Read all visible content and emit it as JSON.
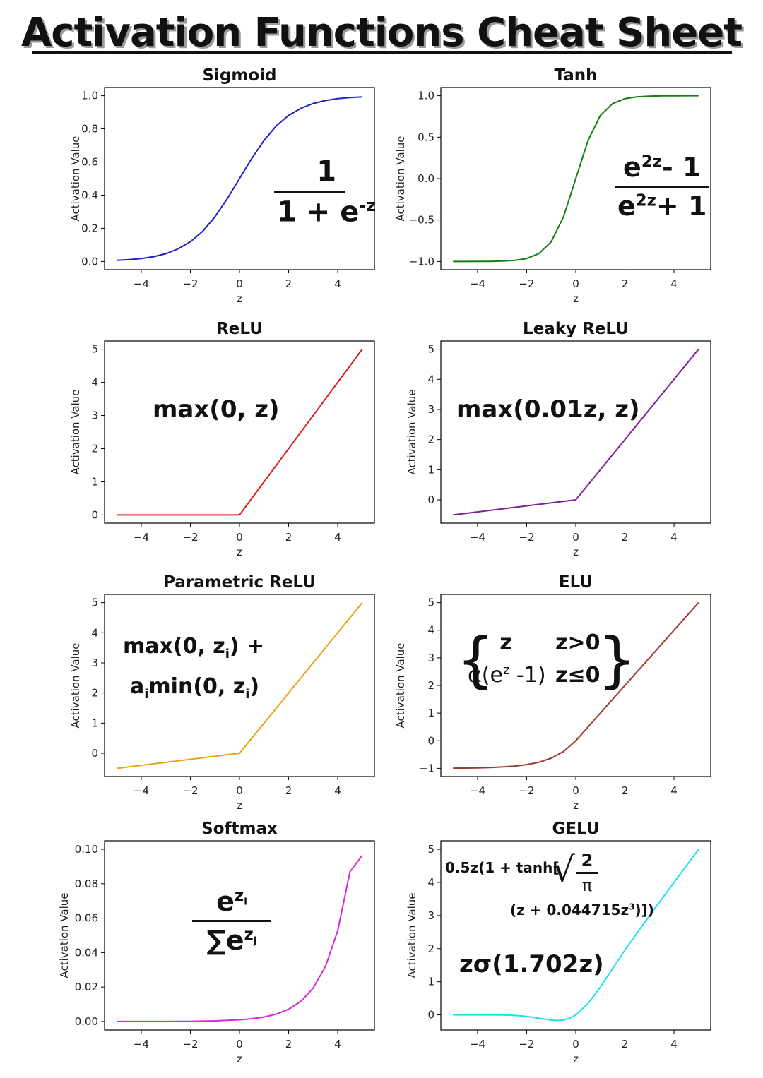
{
  "page_title": "Activation Functions Cheat Sheet",
  "chart_data": [
    {
      "type": "line",
      "title": "Sigmoid",
      "xlabel": "z",
      "ylabel": "Activation Value",
      "xlim": [
        -5,
        5
      ],
      "ylim": [
        0,
        1
      ],
      "xticks": [
        "−4",
        "−2",
        "0",
        "2",
        "4"
      ],
      "yticks": [
        "0.0",
        "0.2",
        "0.4",
        "0.6",
        "0.8",
        "1.0"
      ],
      "series": [
        {
          "color": "#1f1fcc",
          "x": [
            -5,
            -4.5,
            -4,
            -3.5,
            -3,
            -2.5,
            -2,
            -1.5,
            -1,
            -0.5,
            0,
            0.5,
            1,
            1.5,
            2,
            2.5,
            3,
            3.5,
            4,
            4.5,
            5
          ],
          "y": [
            0.007,
            0.011,
            0.018,
            0.029,
            0.047,
            0.076,
            0.119,
            0.182,
            0.269,
            0.378,
            0.5,
            0.622,
            0.731,
            0.818,
            0.881,
            0.924,
            0.953,
            0.971,
            0.982,
            0.989,
            0.993
          ]
        }
      ],
      "grid": false,
      "formula": {
        "numerator": "1",
        "denominator": "1 + e",
        "den_sup": "-z"
      }
    },
    {
      "type": "line",
      "title": "Tanh",
      "xlabel": "z",
      "ylabel": "Activation Value",
      "xlim": [
        -5,
        5
      ],
      "ylim": [
        -1,
        1
      ],
      "xticks": [
        "−4",
        "−2",
        "0",
        "2",
        "4"
      ],
      "yticks": [
        "−1.0",
        "−0.5",
        "0.0",
        "0.5",
        "1.0"
      ],
      "series": [
        {
          "color": "#128012",
          "x": [
            -5,
            -4.5,
            -4,
            -3.5,
            -3,
            -2.5,
            -2,
            -1.5,
            -1,
            -0.5,
            0,
            0.5,
            1,
            1.5,
            2,
            2.5,
            3,
            3.5,
            4,
            4.5,
            5
          ],
          "y": [
            -1,
            -1,
            -0.999,
            -0.998,
            -0.995,
            -0.987,
            -0.964,
            -0.905,
            -0.762,
            -0.462,
            0,
            0.462,
            0.762,
            0.905,
            0.964,
            0.987,
            0.995,
            0.998,
            0.999,
            1,
            1
          ]
        }
      ],
      "grid": false,
      "formula": {
        "num_base": "e",
        "num_sup": "2z",
        "num_tail": "- 1",
        "den_base": "e",
        "den_sup": "2z",
        "den_tail": "+ 1"
      }
    },
    {
      "type": "line",
      "title": "ReLU",
      "xlabel": "z",
      "ylabel": "Activation Value",
      "xlim": [
        -5,
        5
      ],
      "ylim": [
        0,
        5
      ],
      "xticks": [
        "−4",
        "−2",
        "0",
        "2",
        "4"
      ],
      "yticks": [
        "0",
        "1",
        "2",
        "3",
        "4",
        "5"
      ],
      "series": [
        {
          "color": "#d62020",
          "x": [
            -5,
            0,
            5
          ],
          "y": [
            0,
            0,
            5
          ]
        }
      ],
      "grid": false,
      "formula": {
        "text": "max(0, z)"
      }
    },
    {
      "type": "line",
      "title": "Leaky ReLU",
      "xlabel": "z",
      "ylabel": "Activation Value",
      "xlim": [
        -5,
        5
      ],
      "ylim": [
        -0.5,
        5
      ],
      "xticks": [
        "−4",
        "−2",
        "0",
        "2",
        "4"
      ],
      "yticks": [
        "0",
        "1",
        "2",
        "3",
        "4",
        "5"
      ],
      "series": [
        {
          "color": "#7b1f9a",
          "x": [
            -5,
            0,
            5
          ],
          "y": [
            -0.5,
            0,
            5
          ]
        }
      ],
      "grid": false,
      "formula": {
        "text": "max(0.01z, z)"
      }
    },
    {
      "type": "line",
      "title": "Parametric ReLU",
      "xlabel": "z",
      "ylabel": "Activation Value",
      "xlim": [
        -5,
        5
      ],
      "ylim": [
        -0.5,
        5
      ],
      "xticks": [
        "−4",
        "−2",
        "0",
        "2",
        "4"
      ],
      "yticks": [
        "0",
        "1",
        "2",
        "3",
        "4",
        "5"
      ],
      "series": [
        {
          "color": "#e8a318",
          "x": [
            -5,
            0,
            5
          ],
          "y": [
            -0.5,
            0,
            5
          ]
        }
      ],
      "grid": false,
      "formula": {
        "line1": "max(0, z",
        "line1_sub": "i",
        "line1_tail": ") +",
        "line2_pre": "a",
        "line2_sub1": "i",
        "line2_mid": "min(0, z",
        "line2_sub2": "i",
        "line2_tail": ")"
      }
    },
    {
      "type": "line",
      "title": "ELU",
      "xlabel": "z",
      "ylabel": "Activation Value",
      "xlim": [
        -5,
        5
      ],
      "ylim": [
        -1,
        5
      ],
      "xticks": [
        "−4",
        "−2",
        "0",
        "2",
        "4"
      ],
      "yticks": [
        "−1",
        "0",
        "1",
        "2",
        "3",
        "4",
        "5"
      ],
      "series": [
        {
          "color": "#9e3a2e",
          "x": [
            -5,
            -4.5,
            -4,
            -3.5,
            -3,
            -2.5,
            -2,
            -1.5,
            -1,
            -0.5,
            0,
            1,
            2,
            3,
            4,
            5
          ],
          "y": [
            -0.993,
            -0.989,
            -0.982,
            -0.97,
            -0.95,
            -0.918,
            -0.865,
            -0.777,
            -0.632,
            -0.393,
            0,
            1,
            2,
            3,
            4,
            5
          ]
        }
      ],
      "grid": false,
      "formula": {
        "case1_val": "z",
        "case1_cond": "z>0",
        "case2_pre": "α(e",
        "case2_sup": "z",
        "case2_tail": " -1)",
        "case2_cond": "z≤0"
      }
    },
    {
      "type": "line",
      "title": "Softmax",
      "xlabel": "z",
      "ylabel": "Activation Value",
      "xlim": [
        -5,
        5
      ],
      "ylim": [
        0,
        0.1
      ],
      "xticks": [
        "−4",
        "−2",
        "0",
        "2",
        "4"
      ],
      "yticks": [
        "0.00",
        "0.02",
        "0.04",
        "0.06",
        "0.08",
        "0.10"
      ],
      "series": [
        {
          "color": "#d42ad4",
          "x": [
            -5,
            -4,
            -3,
            -2,
            -1,
            0,
            0.5,
            1,
            1.5,
            2,
            2.5,
            3,
            3.5,
            4,
            4.5,
            5
          ],
          "y": [
            0,
            0,
            0,
            0.0001,
            0.0004,
            0.001,
            0.0016,
            0.0026,
            0.0043,
            0.0071,
            0.0117,
            0.0194,
            0.032,
            0.0527,
            0.087,
            0.0965
          ]
        }
      ],
      "grid": false,
      "formula": {
        "num_base": "e",
        "num_sup": "z",
        "num_sub": "i",
        "den_sum": "∑",
        "den_base": "e",
        "den_sup": "z",
        "den_sub": "j"
      }
    },
    {
      "type": "line",
      "title": "GELU",
      "xlabel": "z",
      "ylabel": "Activation Value",
      "xlim": [
        -5,
        5
      ],
      "ylim": [
        -0.2,
        5
      ],
      "xticks": [
        "−4",
        "−2",
        "0",
        "2",
        "4"
      ],
      "yticks": [
        "0",
        "1",
        "2",
        "3",
        "4",
        "5"
      ],
      "series": [
        {
          "color": "#22e0e8",
          "x": [
            -5,
            -4,
            -3,
            -2.5,
            -2,
            -1.5,
            -1,
            -0.75,
            -0.5,
            -0.25,
            0,
            0.5,
            1,
            1.5,
            2,
            3,
            4,
            5
          ],
          "y": [
            0,
            0,
            -0.004,
            -0.015,
            -0.045,
            -0.1,
            -0.159,
            -0.17,
            -0.154,
            -0.1,
            0,
            0.346,
            0.841,
            1.4,
            1.955,
            2.996,
            4,
            5
          ]
        }
      ],
      "grid": false,
      "formula": {
        "line1_pre": "0.5z(1 + tanh[",
        "frac_num": "2",
        "frac_den": "π",
        "line2_pre": "(z + 0.044715z",
        "line2_sup": "3",
        "line2_tail": ")])",
        "approx": "zσ(1.702z)"
      }
    }
  ]
}
